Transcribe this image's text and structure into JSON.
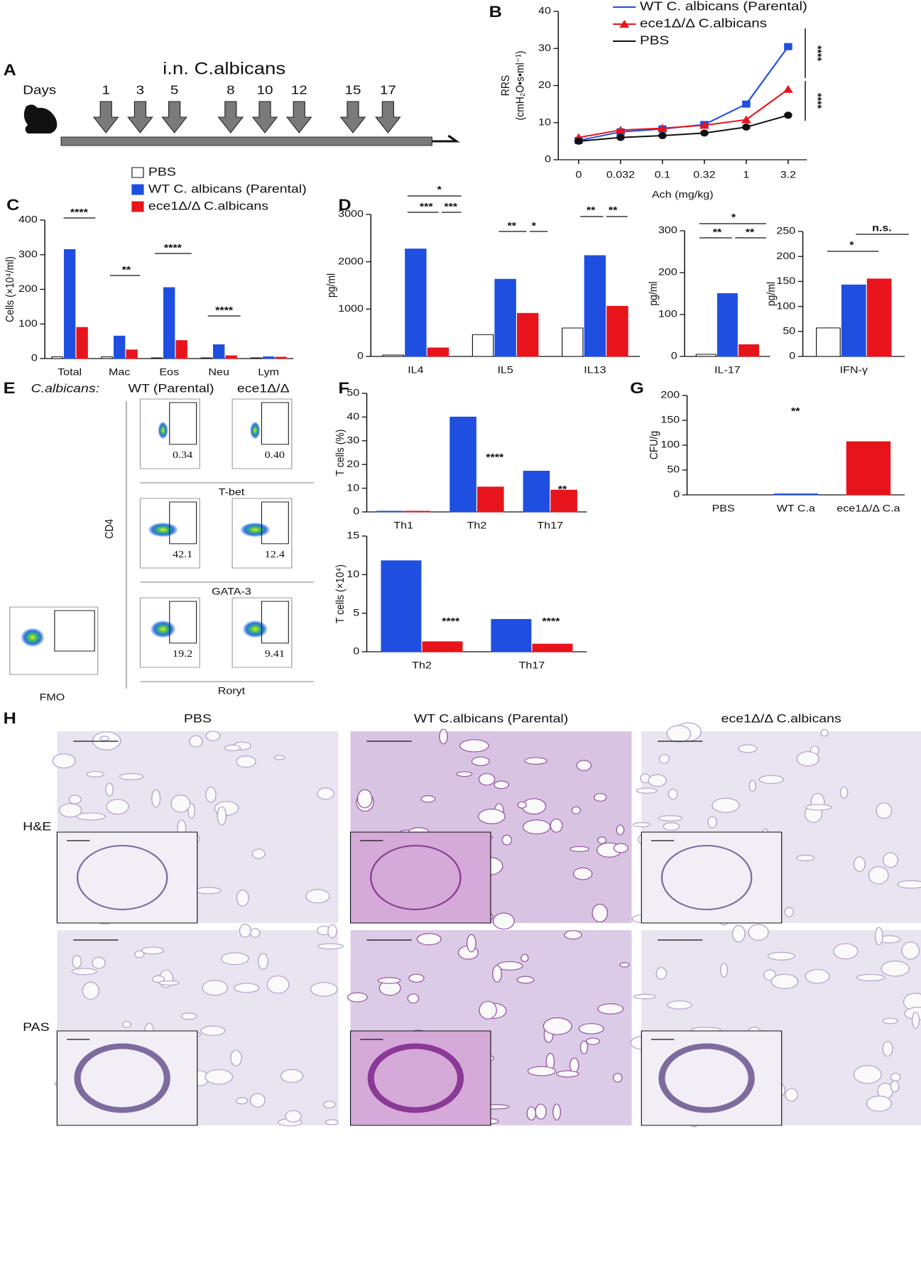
{
  "chart_data": [
    {
      "type": "line",
      "label": "B",
      "ylabel": "RRS",
      "ylabel_unit": "(cmH₂O•s•ml⁻¹)",
      "xlabel": "Ach (mg/kg)",
      "categories": [
        "0",
        "0.032",
        "0.1",
        "0.32",
        "1",
        "3.2"
      ],
      "series": [
        {
          "name": "WT C. albicans (Parental)",
          "color": "#1f4fe0",
          "marker": "square",
          "values": [
            5.2,
            7.5,
            8.3,
            9.5,
            15,
            30.5
          ]
        },
        {
          "name": "ece1Δ/Δ C.albicans",
          "color": "#e8141c",
          "marker": "triangle",
          "values": [
            6,
            8,
            8.5,
            9.3,
            10.8,
            19
          ]
        },
        {
          "name": "PBS",
          "color": "#111111",
          "marker": "circle",
          "values": [
            5,
            6,
            6.5,
            7.2,
            8.8,
            12
          ]
        }
      ],
      "ylim": [
        0,
        40
      ],
      "yticks": [
        0,
        10,
        20,
        30,
        40
      ],
      "annotations": [
        "****",
        "****"
      ]
    },
    {
      "type": "bar",
      "label": "C",
      "ylabel": "Cells (×10⁴/ml)",
      "categories": [
        "Total",
        "Mac",
        "Eos",
        "Neu",
        "Lym"
      ],
      "series": [
        {
          "name": "PBS",
          "color": "#ffffff",
          "values": [
            5,
            5,
            2,
            2,
            2
          ]
        },
        {
          "name": "WT C. albicans (Parental)",
          "color": "#1f4fe0",
          "values": [
            315,
            65,
            205,
            40,
            5
          ]
        },
        {
          "name": "ece1Δ/Δ C.albicans",
          "color": "#e8141c",
          "values": [
            90,
            25,
            52,
            8,
            4
          ]
        }
      ],
      "ylim": [
        0,
        400
      ],
      "yticks": [
        0,
        100,
        200,
        300,
        400
      ],
      "annotations": [
        "****",
        "**",
        "****",
        "****"
      ]
    },
    {
      "type": "bar",
      "label": "D",
      "ylabel": "pg/ml",
      "categories": [
        "IL4",
        "IL5",
        "IL13"
      ],
      "series": [
        {
          "color": "#ffffff",
          "values": [
            30,
            460,
            600
          ]
        },
        {
          "color": "#1f4fe0",
          "values": [
            2270,
            1630,
            2130
          ]
        },
        {
          "color": "#e8141c",
          "values": [
            180,
            910,
            1060
          ]
        }
      ],
      "ylim": [
        0,
        3000
      ],
      "yticks": [
        0,
        1000,
        2000,
        3000
      ],
      "annotations": [
        "*",
        "***",
        "***",
        "**",
        "*",
        "**",
        "**"
      ]
    },
    {
      "type": "bar",
      "ylabel": "pg/ml",
      "categories": [
        "IL-17"
      ],
      "series": [
        {
          "color": "#ffffff",
          "values": [
            5
          ]
        },
        {
          "color": "#1f4fe0",
          "values": [
            150
          ]
        },
        {
          "color": "#e8141c",
          "values": [
            28
          ]
        }
      ],
      "ylim": [
        0,
        300
      ],
      "yticks": [
        0,
        100,
        200,
        300
      ],
      "annotations": [
        "*",
        "**",
        "**"
      ]
    },
    {
      "type": "bar",
      "ylabel": "pg/ml",
      "categories": [
        "IFN-γ"
      ],
      "series": [
        {
          "color": "#ffffff",
          "values": [
            57
          ]
        },
        {
          "color": "#1f4fe0",
          "values": [
            143
          ]
        },
        {
          "color": "#e8141c",
          "values": [
            155
          ]
        }
      ],
      "ylim": [
        0,
        250
      ],
      "yticks": [
        0,
        50,
        100,
        150,
        200,
        250
      ],
      "annotations": [
        "*",
        "n.s."
      ]
    },
    {
      "type": "bar",
      "label": "F",
      "ylabel": "T cells (%)",
      "categories": [
        "Th1",
        "Th2",
        "Th17"
      ],
      "series": [
        {
          "color": "#1f4fe0",
          "values": [
            0.3,
            40,
            17.2
          ]
        },
        {
          "color": "#e8141c",
          "values": [
            0.3,
            10.5,
            9.2
          ]
        }
      ],
      "ylim": [
        0,
        50
      ],
      "yticks": [
        0,
        10,
        20,
        30,
        40,
        50
      ],
      "annotations": [
        "****",
        "**"
      ]
    },
    {
      "type": "bar",
      "ylabel": "T cells (×10⁴)",
      "categories": [
        "Th2",
        "Th17"
      ],
      "series": [
        {
          "color": "#1f4fe0",
          "values": [
            11.8,
            4.2
          ]
        },
        {
          "color": "#e8141c",
          "values": [
            1.3,
            1.0
          ]
        }
      ],
      "ylim": [
        0,
        15
      ],
      "yticks": [
        0,
        5,
        10,
        15
      ],
      "annotations": [
        "****",
        "****"
      ]
    },
    {
      "type": "bar",
      "label": "G",
      "ylabel": "CFU/g",
      "categories": [
        "PBS",
        "WT C.a",
        "ece1Δ/Δ C.a"
      ],
      "values": [
        0,
        2,
        107
      ],
      "colors": [
        "#ffffff",
        "#1f4fe0",
        "#e8141c"
      ],
      "ylim": [
        0,
        200
      ],
      "yticks": [
        0,
        50,
        100,
        150,
        200
      ],
      "annotations": [
        "**"
      ]
    }
  ],
  "timeline": {
    "label": "A",
    "unit": "Days",
    "title": "i.n. C.albicans",
    "days": [
      "1",
      "3",
      "5",
      "8",
      "10",
      "12",
      "15",
      "17"
    ]
  },
  "flow": {
    "label": "E",
    "strain_label": "C.albicans:",
    "columns": [
      "WT  (Parental)",
      "ece1Δ/Δ"
    ],
    "y_axis": "CD4",
    "rows": [
      {
        "marker": "T-bet",
        "gates": [
          "0.34",
          "0.40"
        ]
      },
      {
        "marker": "GATA-3",
        "gates": [
          "42.1",
          "12.4"
        ]
      },
      {
        "marker": "Roryt",
        "gates": [
          "19.2",
          "9.41"
        ]
      }
    ],
    "fmo": "FMO"
  },
  "histology": {
    "label": "H",
    "columns": [
      "PBS",
      "WT C.albicans (Parental)",
      "ece1Δ/Δ C.albicans"
    ],
    "rows": [
      "H&E",
      "PAS"
    ]
  }
}
